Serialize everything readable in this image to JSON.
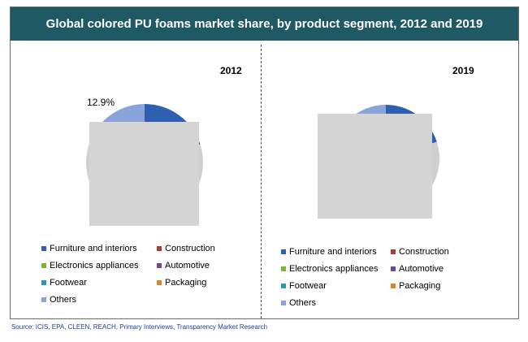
{
  "header": {
    "title": "Global colored PU foams market share, by product segment, 2012 and 2019"
  },
  "source": "Source: ICIS, EPA, CLEEN, REACH, Primary Interviews, Transparency Market Research",
  "colors": {
    "title_bar": "#1f5963",
    "occluder": "#d4d4d4"
  },
  "legend": [
    {
      "label": "Furniture and interiors",
      "color": "#2e5fb0"
    },
    {
      "label": "Construction",
      "color": "#b33a2f"
    },
    {
      "label": "Electronics appliances",
      "color": "#7ab339"
    },
    {
      "label": "Automotive",
      "color": "#6a4b8e"
    },
    {
      "label": "Footwear",
      "color": "#2a9ab0"
    },
    {
      "label": "Packaging",
      "color": "#e0822a"
    },
    {
      "label": "Others",
      "color": "#8aa4d9"
    }
  ],
  "chart_data": [
    {
      "type": "pie",
      "title": "2012",
      "slices": [
        {
          "label": "Furniture and interiors",
          "value": null
        },
        {
          "label": "Others",
          "value": 12.9
        }
      ],
      "data_labels": [
        "12.9%"
      ]
    },
    {
      "type": "pie",
      "title": "2019",
      "slices": [
        {
          "label": "Furniture and interiors",
          "value": null
        },
        {
          "label": "Others",
          "value": null
        }
      ],
      "data_labels": []
    }
  ]
}
